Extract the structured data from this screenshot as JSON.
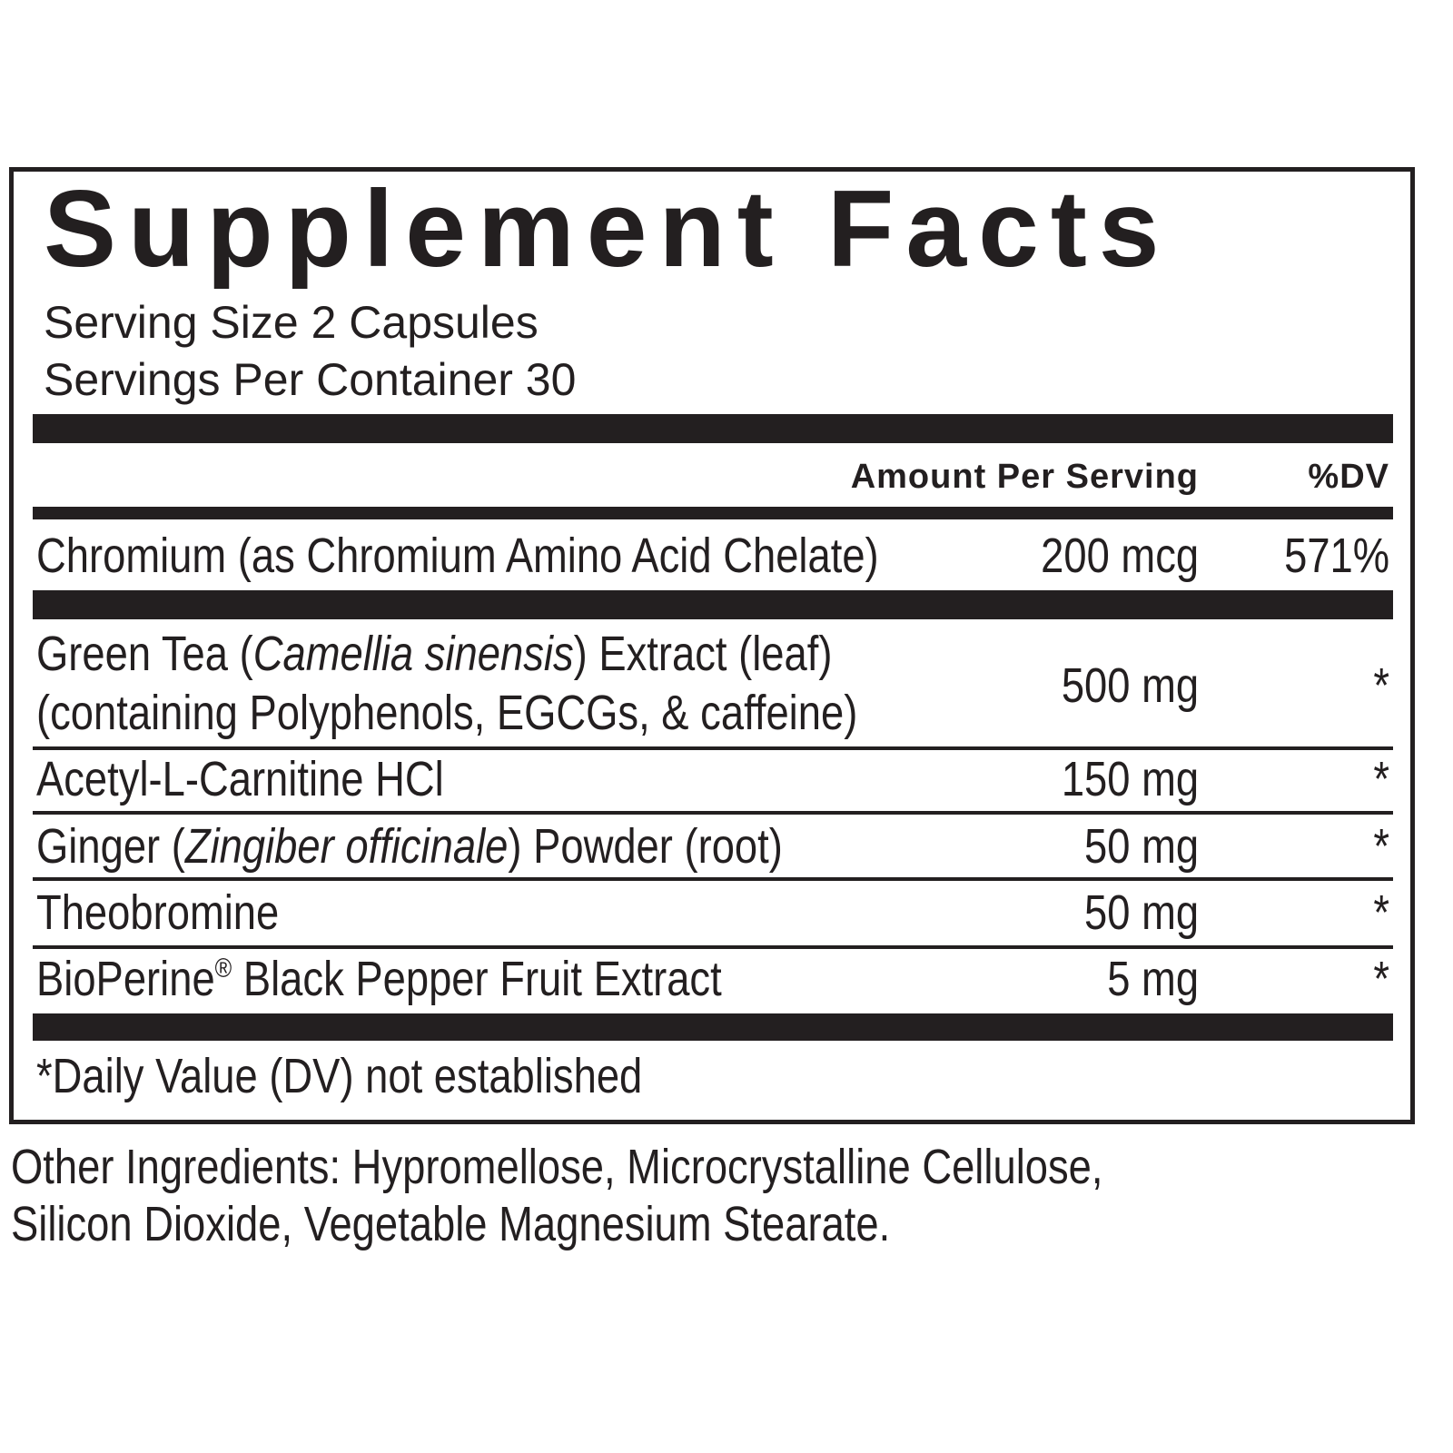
{
  "title": "Supplement Facts",
  "serving_size": "Serving Size 2 Capsules",
  "servings_per_container": "Servings Per Container 30",
  "header": {
    "amount": "Amount Per Serving",
    "dv": "%DV"
  },
  "rows": [
    {
      "name": [
        [
          {
            "text": "Chromium (as Chromium Amino Acid Chelate)"
          }
        ]
      ],
      "amount": "200 mcg",
      "dv": "571%"
    },
    {
      "name": [
        [
          {
            "text": "Green Tea ("
          },
          {
            "text": "Camellia sinensis",
            "italic": true
          },
          {
            "text": ") Extract (leaf)"
          }
        ],
        [
          {
            "text": "(containing Polyphenols, EGCGs, & caffeine)"
          }
        ]
      ],
      "amount": "500 mg",
      "dv": "*"
    },
    {
      "name": [
        [
          {
            "text": "Acetyl-L-Carnitine HCl"
          }
        ]
      ],
      "amount": "150 mg",
      "dv": "*"
    },
    {
      "name": [
        [
          {
            "text": "Ginger ("
          },
          {
            "text": "Zingiber officinale",
            "italic": true
          },
          {
            "text": ") Powder (root)"
          }
        ]
      ],
      "amount": "50 mg",
      "dv": "*"
    },
    {
      "name": [
        [
          {
            "text": "Theobromine"
          }
        ]
      ],
      "amount": "50 mg",
      "dv": "*"
    },
    {
      "name": [
        [
          {
            "text": "BioPerine"
          },
          {
            "text": "®",
            "superscript": true
          },
          {
            "text": " Black Pepper Fruit Extract"
          }
        ]
      ],
      "amount": "5 mg",
      "dv": "*"
    }
  ],
  "footnote": "*Daily Value (DV) not established",
  "other_ingredients": [
    "Other Ingredients: Hypromellose, Microcrystalline Cellulose,",
    "Silicon Dioxide, Vegetable Magnesium Stearate."
  ]
}
